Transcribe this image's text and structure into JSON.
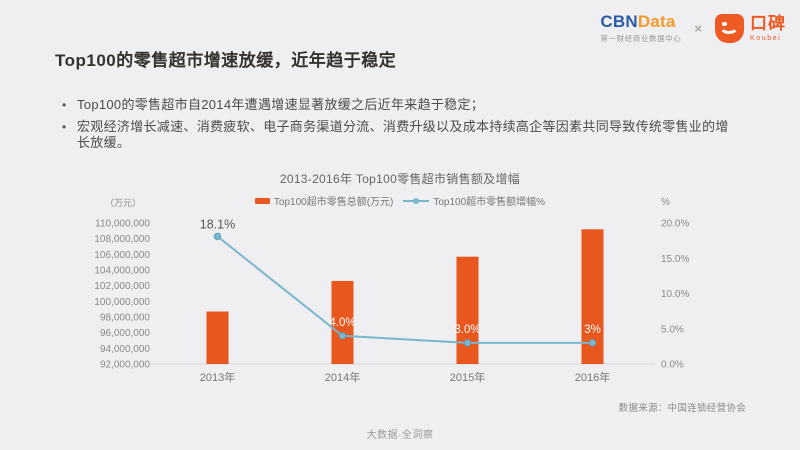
{
  "header": {
    "cbndata": {
      "cbn": "CBN",
      "data": "Data",
      "subtitle": "第一财经商业数据中心"
    },
    "separator": "×",
    "koubei": {
      "name": "口碑",
      "latin": "Koubei"
    }
  },
  "title": "Top100的零售超市增速放缓，近年趋于稳定",
  "bullets": [
    "Top100的零售超市自2014年遭遇增速显著放缓之后近年来趋于稳定；",
    "宏观经济增长减速、消费疲软、电子商务渠道分流、消费升级以及成本持续高企等因素共同导致传统零售业的增长放缓。"
  ],
  "chart_data": {
    "type": "bar",
    "title": "2013-2016年 Top100零售超市销售额及增幅",
    "categories": [
      "2013年",
      "2014年",
      "2015年",
      "2016年"
    ],
    "series": [
      {
        "name": "Top100超市零售总额(万元)",
        "type": "bar",
        "axis": "left",
        "color": "#e8571e",
        "values": [
          98700000,
          102600000,
          105700000,
          109200000
        ]
      },
      {
        "name": "Top100超市零售额增幅%",
        "type": "line",
        "axis": "right",
        "color": "#79b7cf",
        "values": [
          18.1,
          4.0,
          3.0,
          3.0
        ],
        "labels": [
          "18.1%",
          "4.0%",
          "3.0%",
          "3%"
        ]
      }
    ],
    "left_axis": {
      "unit": "（万元）",
      "min": 92000000,
      "max": 110000000,
      "step": 2000000,
      "ticks": [
        "110,000,000",
        "108,000,000",
        "106,000,000",
        "104,000,000",
        "102,000,000",
        "100,000,000",
        "98,000,000",
        "96,000,000",
        "94,000,000",
        "92,000,000"
      ]
    },
    "right_axis": {
      "unit": "%",
      "min": 0,
      "max": 20,
      "step": 5,
      "ticks": [
        "20.0%",
        "15.0%",
        "10.0%",
        "5.0%",
        "0.0%"
      ]
    },
    "grid": false,
    "legend_position": "top"
  },
  "source": "数据来源：中国连锁经营协会",
  "footer": "大数据·全洞察",
  "colors": {
    "background": "#efeef0",
    "bar": "#e8571e",
    "line": "#79b7cf",
    "cbn_blue": "#2a5caa",
    "cbn_orange": "#f39a2b",
    "koubei_orange": "#ee5a23",
    "first_point_label": "#595959",
    "on_bar_label": "#ffffff"
  }
}
